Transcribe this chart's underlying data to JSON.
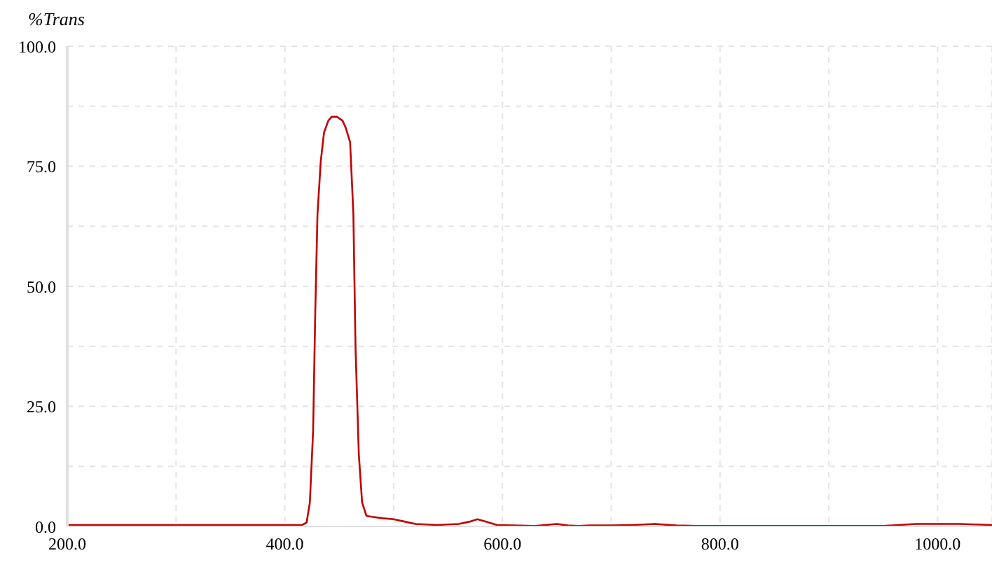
{
  "chart_data": {
    "type": "line",
    "ylabel": "%Trans",
    "x": [
      200,
      250,
      300,
      350,
      400,
      410,
      416,
      420,
      423,
      426,
      428,
      430,
      433,
      436,
      440,
      443,
      448,
      453,
      456,
      460,
      463,
      465,
      468,
      471,
      475,
      480,
      490,
      500,
      510,
      520,
      540,
      560,
      570,
      577,
      585,
      595,
      610,
      630,
      650,
      660,
      670,
      680,
      700,
      720,
      740,
      760,
      780,
      800,
      850,
      900,
      950,
      980,
      1000,
      1020,
      1050
    ],
    "series": [
      {
        "color": "#c00000",
        "values": [
          0.3,
          0.3,
          0.3,
          0.3,
          0.3,
          0.3,
          0.3,
          0.8,
          5,
          20,
          45,
          65,
          76,
          82,
          84.5,
          85.3,
          85.3,
          84.5,
          83,
          80,
          65,
          37,
          15,
          5,
          2.2,
          2,
          1.7,
          1.5,
          1,
          0.5,
          0.3,
          0.5,
          1,
          1.5,
          1,
          0.3,
          0.2,
          0.1,
          0.5,
          0.2,
          0.1,
          0.2,
          0.2,
          0.3,
          0.5,
          0.2,
          0.1,
          0.1,
          0.1,
          0.1,
          0.1,
          0.5,
          0.5,
          0.5,
          0.3
        ]
      }
    ],
    "xlim": [
      200,
      1050
    ],
    "xticks": [
      {
        "value": 200,
        "label": "200.0"
      },
      {
        "value": 300,
        "label": null
      },
      {
        "value": 400,
        "label": "400.0"
      },
      {
        "value": 500,
        "label": null
      },
      {
        "value": 600,
        "label": "600.0"
      },
      {
        "value": 700,
        "label": null
      },
      {
        "value": 800,
        "label": "800.0"
      },
      {
        "value": 900,
        "label": null
      },
      {
        "value": 1000,
        "label": "1000.0"
      }
    ],
    "ylim": [
      0,
      100
    ],
    "yticks": [
      {
        "value": 0,
        "label": "0.0"
      },
      {
        "value": 12.5,
        "label": null
      },
      {
        "value": 25,
        "label": "25.0"
      },
      {
        "value": 37.5,
        "label": null
      },
      {
        "value": 50,
        "label": "50.0"
      },
      {
        "value": 62.5,
        "label": null
      },
      {
        "value": 75,
        "label": "75.0"
      },
      {
        "value": 87.5,
        "label": null
      },
      {
        "value": 100,
        "label": "100.0"
      }
    ],
    "grid": true,
    "legend": false,
    "marker": "none",
    "line_style": "solid"
  }
}
